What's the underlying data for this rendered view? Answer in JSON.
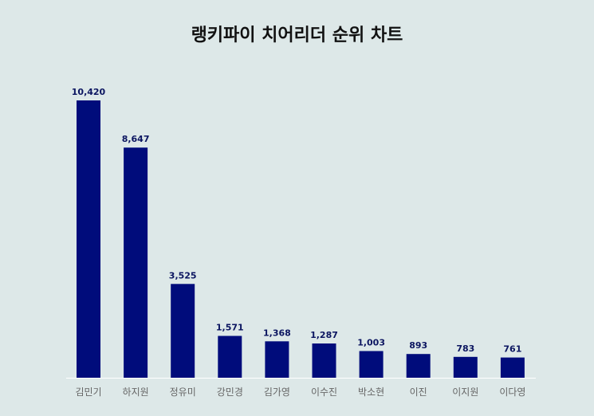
{
  "chart_data": {
    "type": "bar",
    "title": "랭키파이 치어리더 순위 차트",
    "categories": [
      "김민기",
      "하지원",
      "정유미",
      "강민경",
      "김가영",
      "이수진",
      "박소현",
      "이진",
      "이지원",
      "이다영"
    ],
    "values": [
      10420,
      8647,
      3525,
      1571,
      1368,
      1287,
      1003,
      893,
      783,
      761
    ],
    "value_labels": [
      "10,420",
      "8,647",
      "3,525",
      "1,571",
      "1,368",
      "1,287",
      "1,003",
      "893",
      "783",
      "761"
    ],
    "xlabel": "",
    "ylabel": "",
    "ylim": [
      0,
      10420
    ],
    "grid": false,
    "legend": "none"
  },
  "colors": {
    "background": "#dde8e8",
    "bar": "#000c7b",
    "value_label": "#0b1560",
    "tick_label": "#666666",
    "baseline": "#ffffff"
  }
}
